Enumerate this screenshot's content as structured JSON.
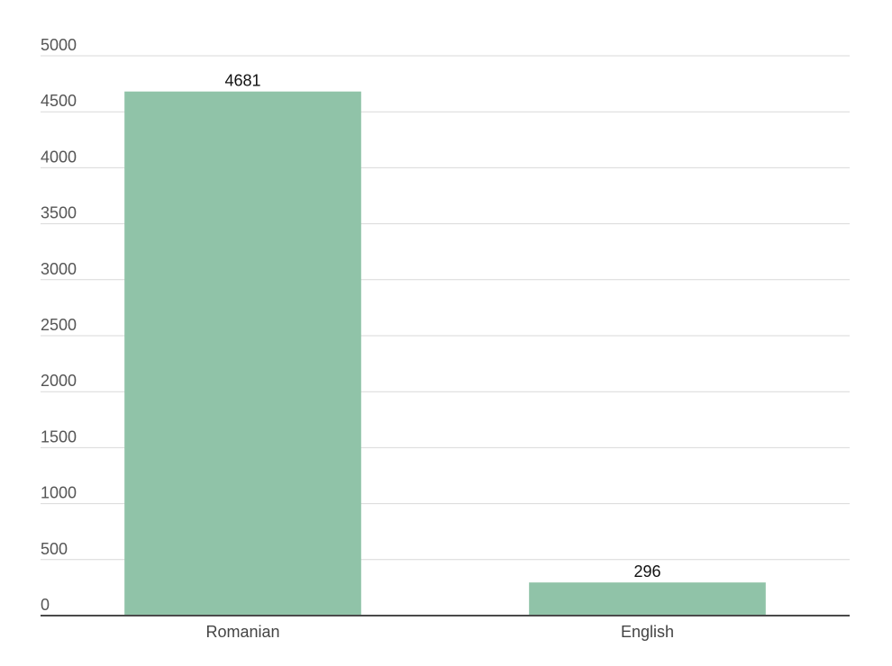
{
  "chart_data": {
    "type": "bar",
    "categories": [
      "Romanian",
      "English"
    ],
    "values": [
      4681,
      296
    ],
    "data_labels": [
      "4681",
      "296"
    ],
    "ylim": [
      0,
      5000
    ],
    "yticks": [
      "0",
      "500",
      "1000",
      "1500",
      "2000",
      "2500",
      "3000",
      "3500",
      "4000",
      "4500",
      "5000"
    ],
    "title": "",
    "xlabel": "",
    "ylabel": "",
    "grid": true,
    "legend": "none",
    "bar_color": "#90c3a8"
  }
}
